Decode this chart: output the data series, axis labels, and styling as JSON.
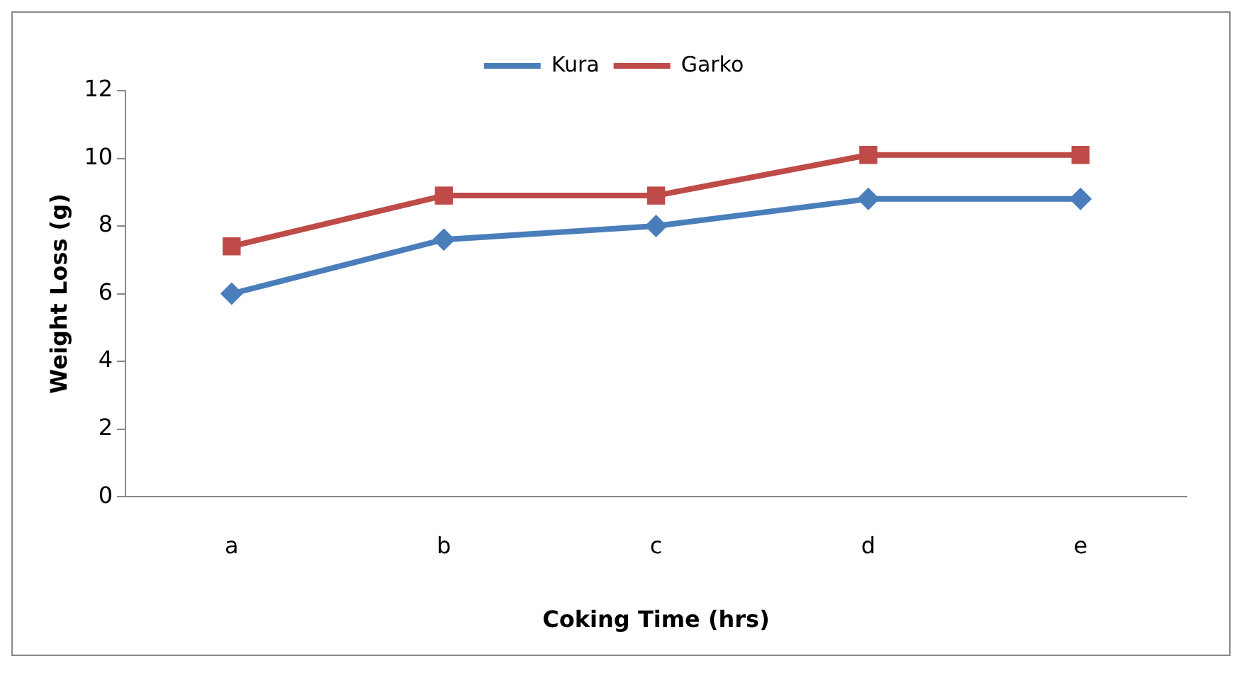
{
  "chart_data": {
    "type": "line",
    "xlabel": "Coking Time (hrs)",
    "ylabel": "Weight Loss (g)",
    "categories": [
      "a",
      "b",
      "c",
      "d",
      "e"
    ],
    "series": [
      {
        "name": "Kura",
        "color": "#4a7ebb",
        "marker": "diamond",
        "values": [
          6,
          7.6,
          8,
          8.8,
          8.8
        ]
      },
      {
        "name": "Garko",
        "color": "#be4b48",
        "marker": "square",
        "values": [
          7.4,
          8.9,
          8.9,
          10.1,
          10.1
        ]
      }
    ],
    "ylim": [
      0,
      12
    ],
    "yticks": [
      0,
      2,
      4,
      6,
      8,
      10,
      12
    ],
    "grid": false,
    "legend": "top"
  }
}
